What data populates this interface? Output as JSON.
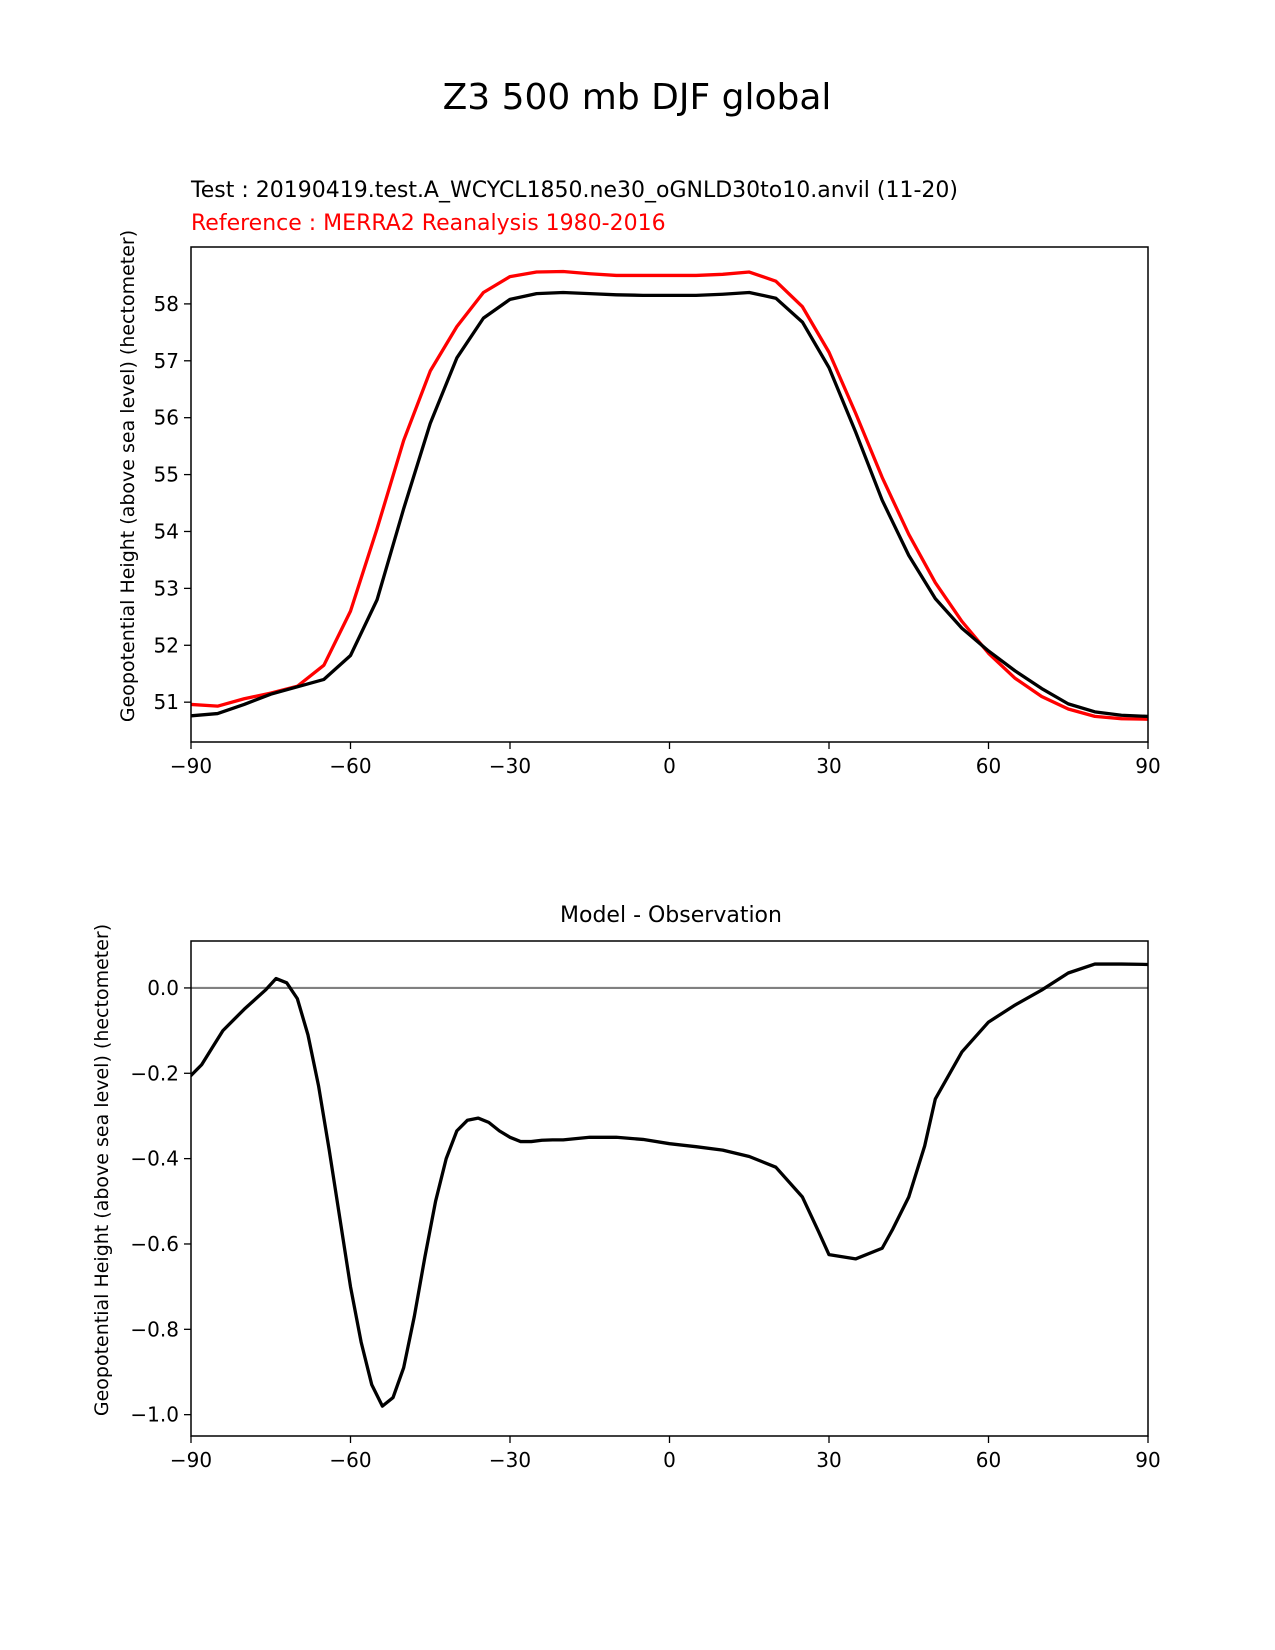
{
  "figure": {
    "suptitle": "Z3 500 mb DJF global"
  },
  "chart_data": [
    {
      "type": "line",
      "title_lines": [
        {
          "text": "Test : 20190419.test.A_WCYCL1850.ne30_oGNLD30to10.anvil (11-20)",
          "color": "#000000"
        },
        {
          "text": "Reference : MERRA2 Reanalysis 1980-2016",
          "color": "#ff0000"
        }
      ],
      "xlabel": "",
      "ylabel": "Geopotential Height (above sea level) (hectometer)",
      "xlim": [
        -90,
        90
      ],
      "ylim": [
        50.3,
        59.0
      ],
      "xticks": [
        -90,
        -60,
        -30,
        0,
        30,
        60,
        90
      ],
      "xtick_labels": [
        "−90",
        "−60",
        "−30",
        "0",
        "30",
        "60",
        "90"
      ],
      "yticks": [
        51,
        52,
        53,
        54,
        55,
        56,
        57,
        58
      ],
      "ytick_labels": [
        "51",
        "52",
        "53",
        "54",
        "55",
        "56",
        "57",
        "58"
      ],
      "grid": false,
      "x": [
        -90,
        -85,
        -80,
        -75,
        -70,
        -65,
        -60,
        -55,
        -50,
        -45,
        -40,
        -35,
        -30,
        -25,
        -20,
        -15,
        -10,
        -5,
        0,
        5,
        10,
        15,
        20,
        25,
        30,
        35,
        40,
        45,
        50,
        55,
        60,
        65,
        70,
        75,
        80,
        85,
        90
      ],
      "series": [
        {
          "color": "#ff0000",
          "values": [
            50.96,
            50.93,
            51.06,
            51.16,
            51.28,
            51.65,
            52.6,
            54.05,
            55.6,
            56.82,
            57.6,
            58.2,
            58.48,
            58.56,
            58.57,
            58.53,
            58.5,
            58.5,
            58.5,
            58.5,
            58.52,
            58.56,
            58.4,
            57.95,
            57.15,
            56.08,
            54.95,
            53.95,
            53.1,
            52.42,
            51.86,
            51.42,
            51.1,
            50.88,
            50.75,
            50.71,
            50.7
          ]
        },
        {
          "color": "#000000",
          "values": [
            50.76,
            50.8,
            50.96,
            51.14,
            51.27,
            51.4,
            51.82,
            52.8,
            54.4,
            55.9,
            57.05,
            57.75,
            58.08,
            58.18,
            58.2,
            58.18,
            58.16,
            58.15,
            58.15,
            58.15,
            58.17,
            58.2,
            58.1,
            57.68,
            56.88,
            55.75,
            54.55,
            53.58,
            52.82,
            52.3,
            51.9,
            51.55,
            51.24,
            50.97,
            50.83,
            50.77,
            50.75
          ]
        }
      ]
    },
    {
      "type": "line",
      "title": "Model - Observation",
      "xlabel": "",
      "ylabel": "Geopotential Height (above sea level) (hectometer)",
      "xlim": [
        -90,
        90
      ],
      "ylim": [
        -1.05,
        0.11
      ],
      "xticks": [
        -90,
        -60,
        -30,
        0,
        30,
        60,
        90
      ],
      "xtick_labels": [
        "−90",
        "−60",
        "−30",
        "0",
        "30",
        "60",
        "90"
      ],
      "yticks": [
        -1.0,
        -0.8,
        -0.6,
        -0.4,
        -0.2,
        0.0
      ],
      "ytick_labels": [
        "−1.0",
        "−0.8",
        "−0.6",
        "−0.4",
        "−0.2",
        "0.0"
      ],
      "zero_line_color": "#808080",
      "grid": false,
      "x": [
        -90,
        -88,
        -86,
        -84,
        -82,
        -80,
        -76,
        -74,
        -72,
        -70,
        -68,
        -66,
        -64,
        -62,
        -60,
        -58,
        -56,
        -54,
        -52,
        -50,
        -48,
        -46,
        -44,
        -42,
        -40,
        -38,
        -36,
        -34,
        -32,
        -30,
        -28,
        -26,
        -24,
        -22,
        -20,
        -15,
        -10,
        -5,
        0,
        5,
        10,
        15,
        20,
        25,
        28,
        30,
        35,
        40,
        42,
        45,
        48,
        50,
        55,
        60,
        65,
        70,
        75,
        80,
        85,
        90
      ],
      "series": [
        {
          "color": "#000000",
          "values": [
            -0.205,
            -0.18,
            -0.14,
            -0.1,
            -0.075,
            -0.05,
            -0.005,
            0.022,
            0.012,
            -0.025,
            -0.11,
            -0.23,
            -0.38,
            -0.54,
            -0.7,
            -0.83,
            -0.93,
            -0.98,
            -0.96,
            -0.89,
            -0.77,
            -0.63,
            -0.5,
            -0.4,
            -0.335,
            -0.31,
            -0.305,
            -0.315,
            -0.335,
            -0.35,
            -0.36,
            -0.36,
            -0.357,
            -0.356,
            -0.356,
            -0.35,
            -0.35,
            -0.355,
            -0.365,
            -0.372,
            -0.38,
            -0.395,
            -0.42,
            -0.49,
            -0.57,
            -0.625,
            -0.635,
            -0.61,
            -0.565,
            -0.49,
            -0.37,
            -0.26,
            -0.15,
            -0.08,
            -0.04,
            -0.005,
            0.035,
            0.056,
            0.056,
            0.055
          ]
        }
      ]
    }
  ]
}
